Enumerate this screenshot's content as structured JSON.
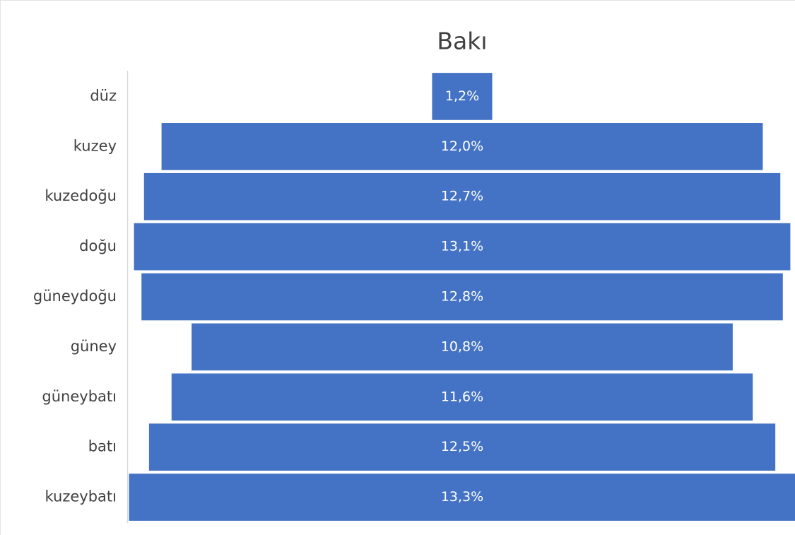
{
  "chart_data": {
    "type": "funnel",
    "title": "Bakı",
    "categories": [
      "düz",
      "kuzey",
      "kuzedoğu",
      "doğu",
      "güneydoğu",
      "güney",
      "güneybatı",
      "batı",
      "kuzeybatı"
    ],
    "values": [
      1.2,
      12.0,
      12.7,
      13.1,
      12.8,
      10.8,
      11.6,
      12.5,
      13.3
    ],
    "value_labels": [
      "1,2%",
      "12,0%",
      "12,7%",
      "13,1%",
      "12,8%",
      "10,8%",
      "11,6%",
      "12,5%",
      "13,3%"
    ],
    "color": "#4472c4"
  }
}
